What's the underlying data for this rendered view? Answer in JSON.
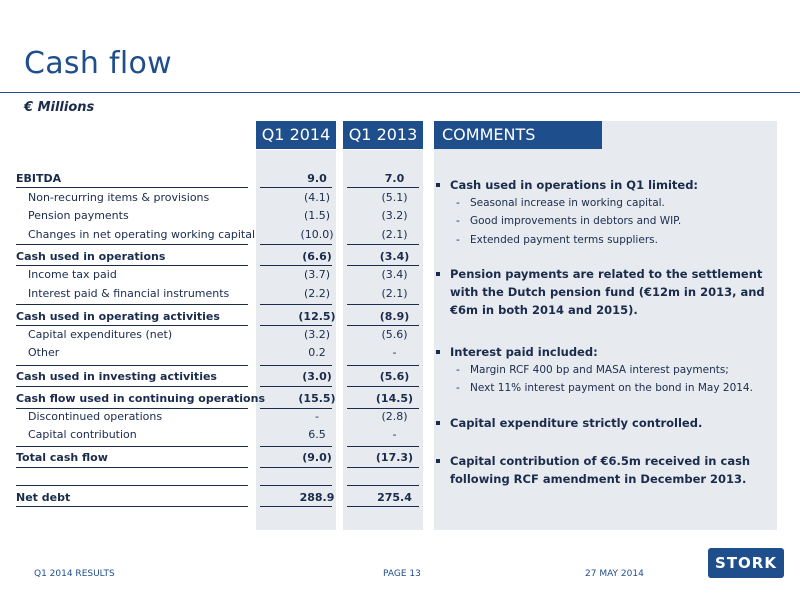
{
  "title": "Cash flow",
  "unit": "€ Millions",
  "columns": [
    "Q1 2014",
    "Q1 2013"
  ],
  "comments_header": "COMMENTS",
  "rows": [
    {
      "label": "EBITDA",
      "v1": "9.0",
      "v2": "7.0"
    },
    {
      "label": "Non-recurring items & provisions",
      "v1": "(4.1)",
      "v2": "(5.1)"
    },
    {
      "label": "Pension payments",
      "v1": "(1.5)",
      "v2": "(3.2)"
    },
    {
      "label": "Changes in net operating working capital",
      "v1": "(10.0)",
      "v2": "(2.1)"
    },
    {
      "label": "Cash used in operations",
      "v1": "(6.6)",
      "v2": "(3.4)"
    },
    {
      "label": "Income tax paid",
      "v1": "(3.7)",
      "v2": "(3.4)"
    },
    {
      "label": "Interest paid & financial instruments",
      "v1": "(2.2)",
      "v2": "(2.1)"
    },
    {
      "label": "Cash used in operating activities",
      "v1": "(12.5)",
      "v2": "(8.9)"
    },
    {
      "label": "Capital expenditures (net)",
      "v1": "(3.2)",
      "v2": "(5.6)"
    },
    {
      "label": "Other",
      "v1": "0.2",
      "v2": "-"
    },
    {
      "label": "Cash used in investing activities",
      "v1": "(3.0)",
      "v2": "(5.6)"
    },
    {
      "label": "Cash flow used in continuing operations",
      "v1": "(15.5)",
      "v2": "(14.5)"
    },
    {
      "label": "Discontinued operations",
      "v1": "-",
      "v2": "(2.8)"
    },
    {
      "label": "Capital contribution",
      "v1": "6.5",
      "v2": "-"
    },
    {
      "label": "Total cash flow",
      "v1": "(9.0)",
      "v2": "(17.3)"
    },
    {
      "label": "Net debt",
      "v1": "288.9",
      "v2": "275.4"
    }
  ],
  "comments": [
    {
      "text": "Cash used in operations in Q1 limited:",
      "subs": [
        "Seasonal increase in working capital.",
        "Good improvements in debtors and WIP.",
        "Extended payment terms suppliers."
      ]
    },
    {
      "text": "Pension payments are related to the settlement with the Dutch pension fund (€12m in 2013, and €6m in both 2014 and 2015).",
      "subs": []
    },
    {
      "text": "Interest paid included:",
      "subs": [
        "Margin RCF 400 bp and MASA interest payments;",
        "Next 11% interest payment on the bond in May 2014."
      ]
    },
    {
      "text": "Capital expenditure strictly controlled.",
      "subs": []
    },
    {
      "text": "Capital contribution of €6.5m received in cash following RCF amendment in December 2013.",
      "subs": []
    }
  ],
  "footer": {
    "left": "Q1 2014 RESULTS",
    "center": "PAGE 13",
    "right": "27 MAY 2014"
  },
  "logo": "STORK",
  "colors": {
    "brand": "#1f4e8c",
    "panel": "#e7ebef",
    "text": "#1a2b4c"
  }
}
